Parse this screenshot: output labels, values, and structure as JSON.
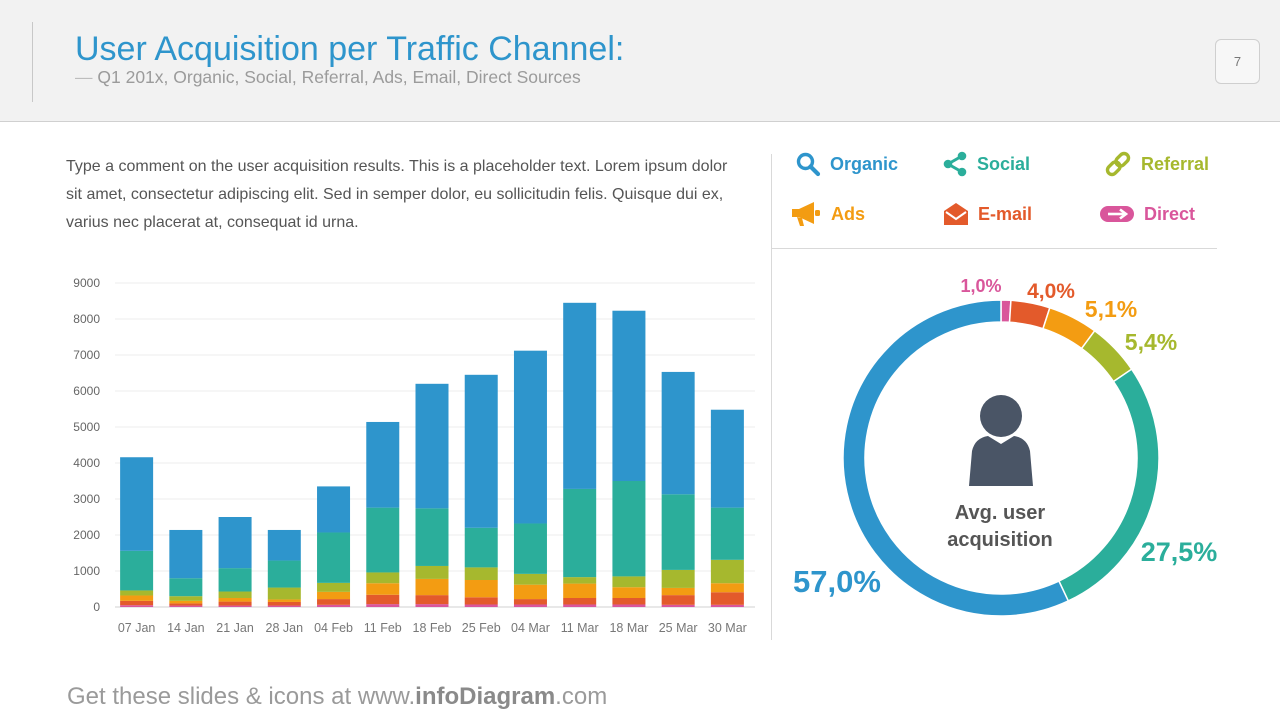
{
  "header": {
    "title": "User Acquisition per Traffic Channel:",
    "subtitle_dash": "—",
    "subtitle": "Q1 201x, Organic, Social, Referral, Ads, Email, Direct Sources",
    "page_number": "7"
  },
  "comment": "Type a comment on the user acquisition results. This is a placeholder text.  Lorem ipsum dolor sit amet, consectetur adipiscing elit.  Sed in semper dolor, eu sollicitudin felis. Quisque dui ex, varius nec placerat at, consequat id urna.",
  "legend": [
    {
      "key": "organic",
      "label": "Organic",
      "icon": "search-icon",
      "color": "#2e95cc"
    },
    {
      "key": "social",
      "label": "Social",
      "icon": "share-icon",
      "color": "#2bae9b"
    },
    {
      "key": "referral",
      "label": "Referral",
      "icon": "link-icon",
      "color": "#a6b82e"
    },
    {
      "key": "ads",
      "label": "Ads",
      "icon": "megaphone-icon",
      "color": "#f39c12"
    },
    {
      "key": "email",
      "label": "E-mail",
      "icon": "envelope-icon",
      "color": "#e35a2b"
    },
    {
      "key": "direct",
      "label": "Direct",
      "icon": "arrow-toggle-icon",
      "color": "#d9569b"
    }
  ],
  "chart_data": [
    {
      "type": "bar",
      "stacked": true,
      "categories": [
        "07 Jan",
        "14 Jan",
        "21 Jan",
        "28 Jan",
        "04 Feb",
        "11 Feb",
        "18 Feb",
        "25 Feb",
        "04 Mar",
        "11 Mar",
        "18 Mar",
        "25 Mar",
        "30 Mar"
      ],
      "ylim": [
        0,
        9000
      ],
      "yticks": [
        0,
        1000,
        2000,
        3000,
        4000,
        5000,
        6000,
        7000,
        8000,
        9000
      ],
      "grid": true,
      "series": [
        {
          "name": "Direct",
          "color": "#d9569b",
          "values": [
            50,
            40,
            40,
            40,
            60,
            80,
            80,
            70,
            70,
            70,
            70,
            60,
            60
          ]
        },
        {
          "name": "E-mail",
          "color": "#e35a2b",
          "values": [
            120,
            60,
            110,
            100,
            160,
            260,
            250,
            200,
            150,
            180,
            180,
            270,
            350
          ]
        },
        {
          "name": "Ads",
          "color": "#f39c12",
          "values": [
            150,
            70,
            100,
            70,
            200,
            320,
            450,
            480,
            400,
            400,
            300,
            200,
            250
          ]
        },
        {
          "name": "Referral",
          "color": "#a6b82e",
          "values": [
            140,
            130,
            180,
            330,
            250,
            300,
            360,
            350,
            300,
            180,
            300,
            500,
            650
          ]
        },
        {
          "name": "Social",
          "color": "#2bae9b",
          "values": [
            1100,
            500,
            650,
            750,
            1400,
            1800,
            1600,
            1100,
            1400,
            2450,
            2650,
            2100,
            1450
          ]
        },
        {
          "name": "Organic",
          "color": "#2e95cc",
          "values": [
            2600,
            1340,
            1420,
            850,
            1280,
            2380,
            3460,
            4250,
            4800,
            5170,
            4730,
            3400,
            2720
          ]
        }
      ]
    },
    {
      "type": "pie",
      "donut": true,
      "center_label": "Avg. user acquisition",
      "slices": [
        {
          "name": "Direct",
          "value": 1.0,
          "label": "1,0%",
          "color": "#d9569b"
        },
        {
          "name": "E-mail",
          "value": 4.0,
          "label": "4,0%",
          "color": "#e35a2b"
        },
        {
          "name": "Ads",
          "value": 5.1,
          "label": "5,1%",
          "color": "#f39c12"
        },
        {
          "name": "Referral",
          "value": 5.4,
          "label": "5,4%",
          "color": "#a6b82e"
        },
        {
          "name": "Social",
          "value": 27.5,
          "label": "27,5%",
          "color": "#2bae9b"
        },
        {
          "name": "Organic",
          "value": 57.0,
          "label": "57,0%",
          "color": "#2e95cc"
        }
      ]
    }
  ],
  "footer": {
    "prefix": "Get these slides & icons at www.",
    "brand": "infoDiagram",
    "suffix": ".com"
  }
}
